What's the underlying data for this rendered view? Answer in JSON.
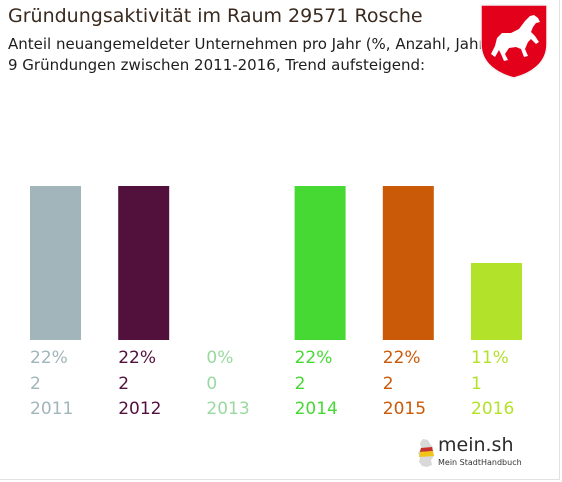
{
  "header": {
    "title": "Gründungsaktivität im Raum 29571 Rosche",
    "subtitle_line1": "Anteil neuangemeldeter Unternehmen pro Jahr (%, Anzahl, Jahr)",
    "subtitle_line2": "9 Gründungen zwischen 2011-2016, Trend aufsteigend:"
  },
  "logo": {
    "name": "mein.sh",
    "tagline": "Mein StadtHandbuch"
  },
  "emblem": {
    "icon": "lower-saxony-horse-crest-icon",
    "colors": {
      "field": "#e3001b",
      "horse": "#ffffff"
    }
  },
  "chart_data": {
    "type": "bar",
    "categories": [
      "2011",
      "2012",
      "2013",
      "2014",
      "2015",
      "2016"
    ],
    "values": [
      22,
      22,
      0,
      22,
      22,
      11
    ],
    "counts": [
      2,
      2,
      0,
      2,
      2,
      1
    ],
    "percent_labels": [
      "22%",
      "22%",
      "0%",
      "22%",
      "22%",
      "11%"
    ],
    "count_labels": [
      "2",
      "2",
      "0",
      "2",
      "2",
      "1"
    ],
    "colors": [
      "#a2b5bb",
      "#52113d",
      "#99d9a0",
      "#46d934",
      "#ca5a08",
      "#b3e22a"
    ],
    "ylim": [
      0,
      22
    ],
    "grid": false,
    "title": "Gründungsaktivität im Raum 29571 Rosche"
  }
}
